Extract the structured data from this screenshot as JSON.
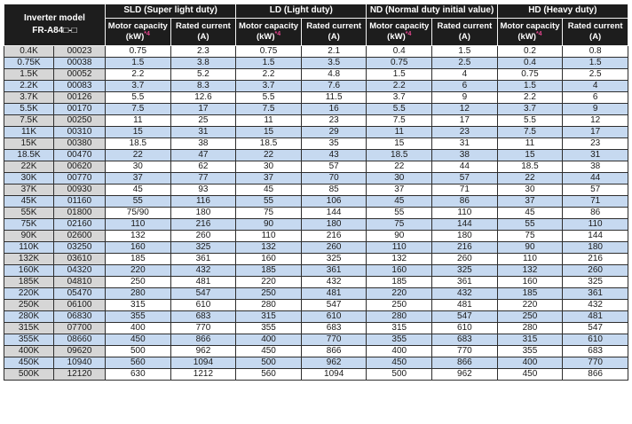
{
  "colors": {
    "header_bg": "#1d1d1d",
    "header_text": "#ffffff",
    "model_col_bg": "#d6d6d6",
    "row_alt_bg": "#c6d9f0",
    "row_bg": "#ffffff",
    "grid": "#2e2e2e",
    "header_grid": "#f2f2f2",
    "text": "#1a1a1a",
    "note": "#e6458f"
  },
  "table": {
    "model_header_line1": "Inverter model",
    "model_header_line2": "FR-A84□-□",
    "groups": [
      {
        "label": "SLD (Super light duty)"
      },
      {
        "label": "LD (Light duty)"
      },
      {
        "label": "ND (Normal duty initial value)"
      },
      {
        "label": "HD (Heavy duty)"
      }
    ],
    "subheaders": {
      "motor_line1": "Motor capacity",
      "motor_line2": "(kW)",
      "motor_note": "*4",
      "current_line1": "Rated current",
      "current_line2": "(A)"
    },
    "rows": [
      {
        "model": "0.4K",
        "code": "00023",
        "values": [
          "0.75",
          "2.3",
          "0.75",
          "2.1",
          "0.4",
          "1.5",
          "0.2",
          "0.8"
        ]
      },
      {
        "model": "0.75K",
        "code": "00038",
        "values": [
          "1.5",
          "3.8",
          "1.5",
          "3.5",
          "0.75",
          "2.5",
          "0.4",
          "1.5"
        ]
      },
      {
        "model": "1.5K",
        "code": "00052",
        "values": [
          "2.2",
          "5.2",
          "2.2",
          "4.8",
          "1.5",
          "4",
          "0.75",
          "2.5"
        ]
      },
      {
        "model": "2.2K",
        "code": "00083",
        "values": [
          "3.7",
          "8.3",
          "3.7",
          "7.6",
          "2.2",
          "6",
          "1.5",
          "4"
        ]
      },
      {
        "model": "3.7K",
        "code": "00126",
        "values": [
          "5.5",
          "12.6",
          "5.5",
          "11.5",
          "3.7",
          "9",
          "2.2",
          "6"
        ]
      },
      {
        "model": "5.5K",
        "code": "00170",
        "values": [
          "7.5",
          "17",
          "7.5",
          "16",
          "5.5",
          "12",
          "3.7",
          "9"
        ]
      },
      {
        "model": "7.5K",
        "code": "00250",
        "values": [
          "11",
          "25",
          "11",
          "23",
          "7.5",
          "17",
          "5.5",
          "12"
        ]
      },
      {
        "model": "11K",
        "code": "00310",
        "values": [
          "15",
          "31",
          "15",
          "29",
          "11",
          "23",
          "7.5",
          "17"
        ]
      },
      {
        "model": "15K",
        "code": "00380",
        "values": [
          "18.5",
          "38",
          "18.5",
          "35",
          "15",
          "31",
          "11",
          "23"
        ]
      },
      {
        "model": "18.5K",
        "code": "00470",
        "values": [
          "22",
          "47",
          "22",
          "43",
          "18.5",
          "38",
          "15",
          "31"
        ]
      },
      {
        "model": "22K",
        "code": "00620",
        "values": [
          "30",
          "62",
          "30",
          "57",
          "22",
          "44",
          "18.5",
          "38"
        ]
      },
      {
        "model": "30K",
        "code": "00770",
        "values": [
          "37",
          "77",
          "37",
          "70",
          "30",
          "57",
          "22",
          "44"
        ]
      },
      {
        "model": "37K",
        "code": "00930",
        "values": [
          "45",
          "93",
          "45",
          "85",
          "37",
          "71",
          "30",
          "57"
        ]
      },
      {
        "model": "45K",
        "code": "01160",
        "values": [
          "55",
          "116",
          "55",
          "106",
          "45",
          "86",
          "37",
          "71"
        ]
      },
      {
        "model": "55K",
        "code": "01800",
        "values": [
          "75/90",
          "180",
          "75",
          "144",
          "55",
          "110",
          "45",
          "86"
        ]
      },
      {
        "model": "75K",
        "code": "02160",
        "values": [
          "110",
          "216",
          "90",
          "180",
          "75",
          "144",
          "55",
          "110"
        ]
      },
      {
        "model": "90K",
        "code": "02600",
        "values": [
          "132",
          "260",
          "110",
          "216",
          "90",
          "180",
          "75",
          "144"
        ]
      },
      {
        "model": "110K",
        "code": "03250",
        "values": [
          "160",
          "325",
          "132",
          "260",
          "110",
          "216",
          "90",
          "180"
        ]
      },
      {
        "model": "132K",
        "code": "03610",
        "values": [
          "185",
          "361",
          "160",
          "325",
          "132",
          "260",
          "110",
          "216"
        ]
      },
      {
        "model": "160K",
        "code": "04320",
        "values": [
          "220",
          "432",
          "185",
          "361",
          "160",
          "325",
          "132",
          "260"
        ]
      },
      {
        "model": "185K",
        "code": "04810",
        "values": [
          "250",
          "481",
          "220",
          "432",
          "185",
          "361",
          "160",
          "325"
        ]
      },
      {
        "model": "220K",
        "code": "05470",
        "values": [
          "280",
          "547",
          "250",
          "481",
          "220",
          "432",
          "185",
          "361"
        ]
      },
      {
        "model": "250K",
        "code": "06100",
        "values": [
          "315",
          "610",
          "280",
          "547",
          "250",
          "481",
          "220",
          "432"
        ]
      },
      {
        "model": "280K",
        "code": "06830",
        "values": [
          "355",
          "683",
          "315",
          "610",
          "280",
          "547",
          "250",
          "481"
        ]
      },
      {
        "model": "315K",
        "code": "07700",
        "values": [
          "400",
          "770",
          "355",
          "683",
          "315",
          "610",
          "280",
          "547"
        ]
      },
      {
        "model": "355K",
        "code": "08660",
        "values": [
          "450",
          "866",
          "400",
          "770",
          "355",
          "683",
          "315",
          "610"
        ]
      },
      {
        "model": "400K",
        "code": "09620",
        "values": [
          "500",
          "962",
          "450",
          "866",
          "400",
          "770",
          "355",
          "683"
        ]
      },
      {
        "model": "450K",
        "code": "10940",
        "values": [
          "560",
          "1094",
          "500",
          "962",
          "450",
          "866",
          "400",
          "770"
        ]
      },
      {
        "model": "500K",
        "code": "12120",
        "values": [
          "630",
          "1212",
          "560",
          "1094",
          "500",
          "962",
          "450",
          "866"
        ]
      }
    ]
  }
}
